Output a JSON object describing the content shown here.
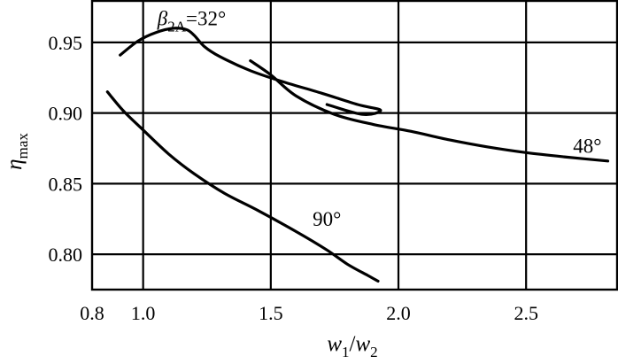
{
  "chart_data": {
    "type": "line",
    "title": "",
    "xlabel": {
      "main": "w",
      "sub1": "1",
      "slash": "/",
      "main2": "w",
      "sub2": "2"
    },
    "ylabel": {
      "main": "η",
      "sub": "max"
    },
    "xlim": [
      0.8,
      2.86
    ],
    "ylim": [
      0.775,
      0.98
    ],
    "grid": true,
    "x_ticks": [
      {
        "value": 0.8,
        "label": "0.8"
      },
      {
        "value": 1.0,
        "label": "1.0"
      },
      {
        "value": 1.5,
        "label": "1.5"
      },
      {
        "value": 2.0,
        "label": "2.0"
      },
      {
        "value": 2.5,
        "label": "2.5"
      }
    ],
    "y_ticks": [
      {
        "value": 0.95,
        "label": "0.95"
      },
      {
        "value": 0.9,
        "label": "0.90"
      },
      {
        "value": 0.85,
        "label": "0.85"
      },
      {
        "value": 0.8,
        "label": "0.80"
      }
    ],
    "x_gridlines": [
      1.0,
      1.5,
      2.0,
      2.5
    ],
    "y_gridlines": [
      0.95,
      0.9,
      0.85,
      0.8
    ],
    "series": [
      {
        "name": "β2A = 32°",
        "label_main": "β",
        "label_sub": "2A",
        "label_rest": "=32°",
        "label_x": 1.19,
        "label_y": 0.962,
        "x": [
          0.91,
          0.98,
          1.05,
          1.12,
          1.17,
          1.2,
          1.24,
          1.3,
          1.42,
          1.55,
          1.7,
          1.84,
          1.93,
          1.86,
          1.72
        ],
        "y": [
          0.941,
          0.951,
          0.957,
          0.96,
          0.959,
          0.955,
          0.947,
          0.94,
          0.93,
          0.922,
          0.914,
          0.906,
          0.902,
          0.899,
          0.906
        ]
      },
      {
        "name": "48°",
        "label": "48°",
        "label_x": 2.74,
        "label_y": 0.872,
        "x": [
          1.42,
          1.5,
          1.6,
          1.75,
          1.9,
          2.05,
          2.2,
          2.35,
          2.5,
          2.65,
          2.82
        ],
        "y": [
          0.937,
          0.927,
          0.912,
          0.899,
          0.892,
          0.887,
          0.881,
          0.876,
          0.872,
          0.869,
          0.866
        ]
      },
      {
        "name": "90°",
        "label": "90°",
        "label_x": 1.72,
        "label_y": 0.82,
        "x": [
          0.86,
          0.92,
          1.0,
          1.1,
          1.2,
          1.32,
          1.45,
          1.6,
          1.72,
          1.8,
          1.88,
          1.92
        ],
        "y": [
          0.915,
          0.902,
          0.888,
          0.871,
          0.857,
          0.843,
          0.831,
          0.816,
          0.803,
          0.793,
          0.785,
          0.781
        ]
      }
    ]
  }
}
